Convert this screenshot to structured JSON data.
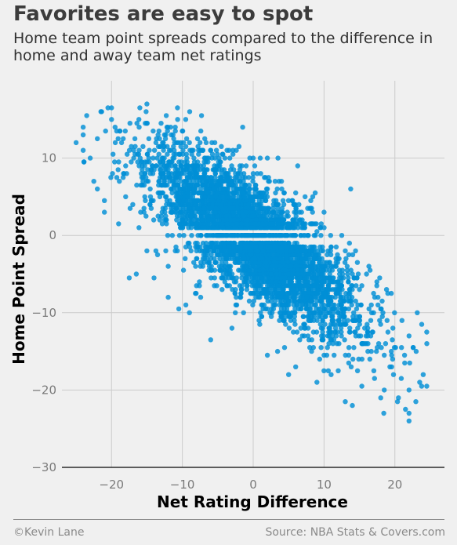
{
  "title": "Favorites are easy to spot",
  "subtitle": "Home team point spreads compared to the difference in home and away team net ratings",
  "footer": {
    "credit": "©Kevin Lane",
    "source": "Source: NBA Stats & Covers.com"
  },
  "chart_data": {
    "type": "scatter",
    "xlabel": "Net Rating Difference",
    "ylabel": "Home Point Spread",
    "xlim": [
      -27,
      27
    ],
    "ylim": [
      -30,
      20
    ],
    "xticks": [
      -20,
      -10,
      0,
      10,
      20
    ],
    "yticks": [
      -30,
      -20,
      -10,
      0,
      10
    ],
    "xtick_labels": [
      "−20",
      "−10",
      "0",
      "10",
      "20"
    ],
    "ytick_labels": [
      "−30",
      "−20",
      "−10",
      "0",
      "10"
    ],
    "grid": true,
    "trend": {
      "slope": -0.64,
      "intercept": -0.5,
      "spread": 3.6
    },
    "point_color": "#008fd5",
    "points": [
      [
        -24.0,
        14.0
      ],
      [
        -24.0,
        11.0
      ],
      [
        -24.0,
        13.0
      ],
      [
        -23.5,
        15.5
      ],
      [
        -22.5,
        7.0
      ],
      [
        -22.0,
        6.0
      ],
      [
        -21.5,
        16.0
      ],
      [
        -21.0,
        3.0
      ],
      [
        -21.0,
        4.5
      ],
      [
        -20.5,
        16.5
      ],
      [
        -20.0,
        15.0
      ],
      [
        -19.0,
        1.5
      ],
      [
        -18.0,
        5.0
      ],
      [
        -17.0,
        4.0
      ],
      [
        -17.5,
        -5.5
      ],
      [
        -16.5,
        -5.0
      ],
      [
        -16.0,
        16.5
      ],
      [
        -15.0,
        17.0
      ],
      [
        -15.0,
        -2.0
      ],
      [
        -14.0,
        -5.5
      ],
      [
        -13.5,
        -2.5
      ],
      [
        -12.0,
        -4.0
      ],
      [
        -12.0,
        -8.0
      ],
      [
        -11.0,
        -2.0
      ],
      [
        -10.5,
        -9.5
      ],
      [
        -9.5,
        -9.0
      ],
      [
        -9.0,
        -10.0
      ],
      [
        -8.0,
        -6.5
      ],
      [
        -6.0,
        -13.5
      ],
      [
        -3.0,
        -12.0
      ],
      [
        0.0,
        10.0
      ],
      [
        -2.0,
        11.5
      ],
      [
        1.0,
        10.0
      ],
      [
        2.0,
        10.0
      ],
      [
        3.5,
        10.0
      ],
      [
        4.0,
        7.0
      ],
      [
        6.0,
        5.5
      ],
      [
        6.5,
        3.0
      ],
      [
        7.0,
        1.5
      ],
      [
        8.0,
        3.5
      ],
      [
        10.0,
        3.0
      ],
      [
        6.0,
        -1.5
      ],
      [
        4.5,
        -1.0
      ],
      [
        9.0,
        0.5
      ],
      [
        2.0,
        -15.5
      ],
      [
        5.0,
        -18.0
      ],
      [
        6.0,
        -17.0
      ],
      [
        9.0,
        -19.0
      ],
      [
        12.5,
        0.0
      ],
      [
        13.0,
        -2.0
      ],
      [
        13.5,
        -2.5
      ],
      [
        14.0,
        -5.0
      ],
      [
        16.0,
        -5.0
      ],
      [
        16.5,
        -4.5
      ],
      [
        19.0,
        -7.5
      ],
      [
        19.5,
        -7.5
      ],
      [
        21.0,
        -11.0
      ],
      [
        22.0,
        -13.0
      ],
      [
        23.0,
        -15.0
      ],
      [
        24.5,
        -12.5
      ],
      [
        24.0,
        -18.0
      ],
      [
        24.5,
        -19.5
      ],
      [
        23.5,
        -19.0
      ],
      [
        22.0,
        -20.0
      ],
      [
        22.0,
        -23.0
      ],
      [
        22.0,
        -24.0
      ],
      [
        21.5,
        -22.5
      ],
      [
        20.5,
        -21.0
      ],
      [
        18.5,
        -20.0
      ],
      [
        18.0,
        -21.0
      ],
      [
        14.0,
        -22.0
      ],
      [
        13.0,
        -21.5
      ],
      [
        10.0,
        -15.5
      ],
      [
        11.0,
        -18.0
      ],
      [
        19.5,
        -15.0
      ],
      [
        18.0,
        -9.5
      ],
      [
        17.0,
        -10.0
      ],
      [
        15.0,
        -7.0
      ],
      [
        12.0,
        -6.0
      ],
      [
        11.0,
        -4.0
      ],
      [
        -25.0,
        12.0
      ],
      [
        -23.0,
        10.0
      ],
      [
        -22.0,
        12.5
      ],
      [
        -18.0,
        9.0
      ],
      [
        -19.5,
        14.0
      ],
      [
        -13.0,
        14.5
      ],
      [
        -11.0,
        14.0
      ],
      [
        -10.0,
        13.5
      ],
      [
        -9.0,
        12.0
      ],
      [
        -7.5,
        12.0
      ],
      [
        -6.0,
        11.0
      ],
      [
        -4.0,
        10.0
      ],
      [
        0.0,
        8.0
      ],
      [
        2.0,
        6.0
      ],
      [
        5.5,
        4.5
      ]
    ]
  }
}
